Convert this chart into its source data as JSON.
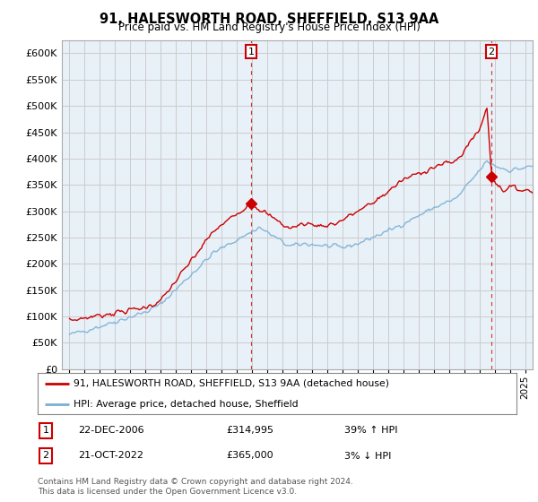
{
  "title": "91, HALESWORTH ROAD, SHEFFIELD, S13 9AA",
  "subtitle": "Price paid vs. HM Land Registry's House Price Index (HPI)",
  "red_label": "91, HALESWORTH ROAD, SHEFFIELD, S13 9AA (detached house)",
  "blue_label": "HPI: Average price, detached house, Sheffield",
  "footer": "Contains HM Land Registry data © Crown copyright and database right 2024.\nThis data is licensed under the Open Government Licence v3.0.",
  "annotation1": {
    "num": "1",
    "date": "22-DEC-2006",
    "price": "£314,995",
    "pct": "39% ↑ HPI"
  },
  "annotation2": {
    "num": "2",
    "date": "21-OCT-2022",
    "price": "£365,000",
    "pct": "3% ↓ HPI"
  },
  "ylim": [
    0,
    625000
  ],
  "yticks": [
    0,
    50000,
    100000,
    150000,
    200000,
    250000,
    300000,
    350000,
    400000,
    450000,
    500000,
    550000,
    600000
  ],
  "red_color": "#cc0000",
  "blue_color": "#7ab0d4",
  "grid_color": "#cccccc",
  "bg_color": "#ffffff",
  "plot_bg_color": "#e8f0f8",
  "anno_vline_color": "#cc0000",
  "sale1_x": 2006.96,
  "sale1_y": 314995,
  "sale2_x": 2022.79,
  "sale2_y": 365000,
  "xmin": 1994.5,
  "xmax": 2025.5
}
